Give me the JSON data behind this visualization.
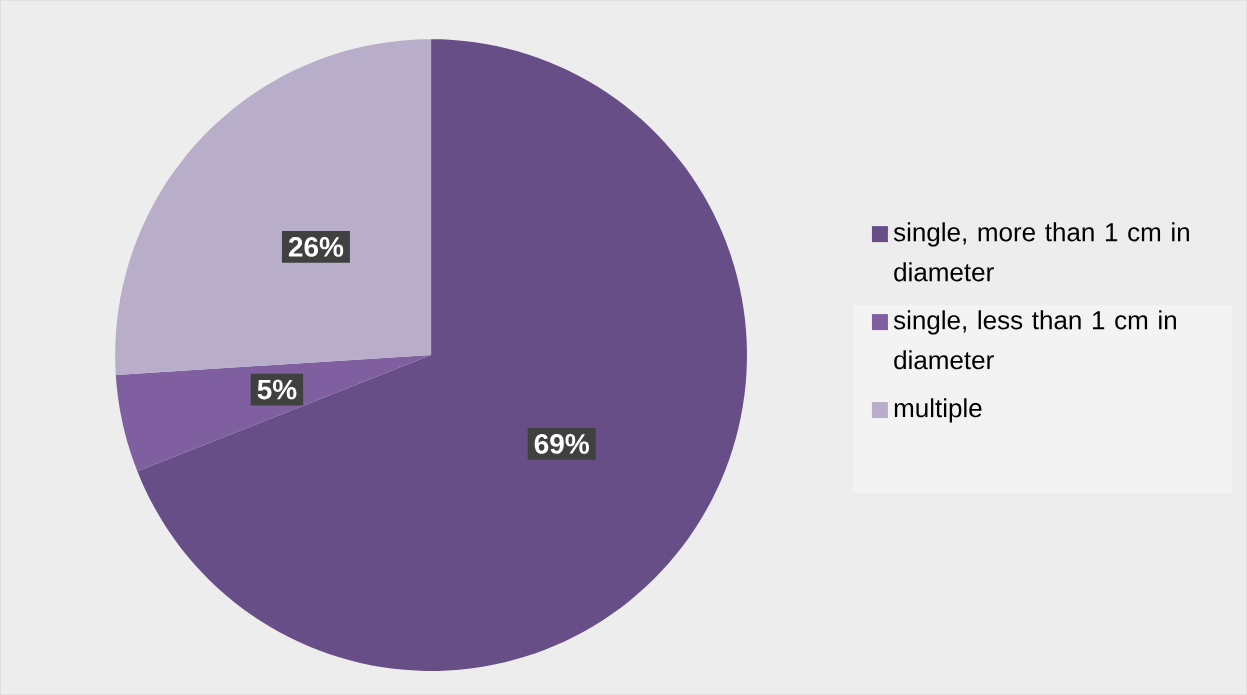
{
  "chart_data": {
    "type": "pie",
    "categories": [
      "single, more than 1 cm in diameter",
      "single, less than 1 cm in diameter",
      "multiple"
    ],
    "values": [
      69,
      5,
      26
    ],
    "value_labels": [
      "69%",
      "5%",
      "26%"
    ],
    "colors": [
      "#684e86",
      "#7f5fa0",
      "#b8aeca"
    ],
    "legend": "right"
  }
}
